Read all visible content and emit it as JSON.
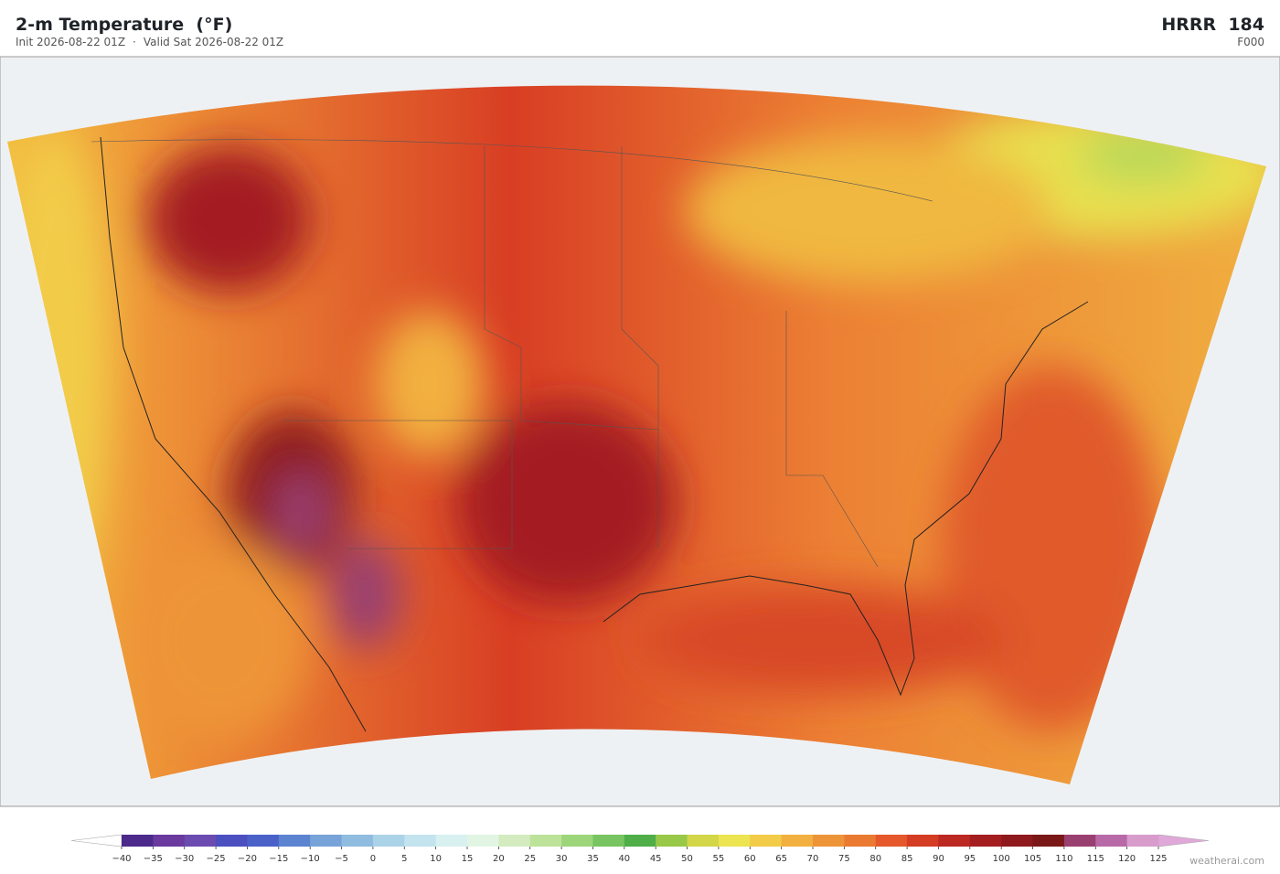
{
  "header": {
    "title": "2-m Temperature  (°F)",
    "init": "Init 2026-08-22 01Z",
    "separator": "·",
    "valid": "Valid Sat 2026-08-22 01Z",
    "model": "HRRR  184",
    "forecast": "F000"
  },
  "colorbar": {
    "ticks": [
      {
        "value": -40,
        "label": "−40"
      },
      {
        "value": -35,
        "label": "−35"
      },
      {
        "value": -30,
        "label": "−30"
      },
      {
        "value": -25,
        "label": "−25"
      },
      {
        "value": -20,
        "label": "−20"
      },
      {
        "value": -15,
        "label": "−15"
      },
      {
        "value": -10,
        "label": "−10"
      },
      {
        "value": -5,
        "label": "−5"
      },
      0,
      5,
      10,
      15,
      20,
      25,
      30,
      35,
      40,
      45,
      50,
      55,
      60,
      65,
      70,
      75,
      80,
      85,
      90,
      95,
      100,
      105,
      110,
      115,
      120,
      125
    ],
    "colors": [
      "#4b2a8c",
      "#6a3a9e",
      "#6b4bb0",
      "#4b4fc0",
      "#4a62c8",
      "#5b83d0",
      "#77a3d8",
      "#90bce0",
      "#abd3e8",
      "#c3e3ee",
      "#d8f0f0",
      "#e2f5e4",
      "#d4ebbf",
      "#bde39a",
      "#9dd57a",
      "#78c460",
      "#4fae48",
      "#98c848",
      "#d2d648",
      "#ece450",
      "#f2cc48",
      "#f2b040",
      "#ee9438",
      "#ea7a32",
      "#e4582c",
      "#d43c24",
      "#bc2822",
      "#a41e20",
      "#8e1a1e",
      "#7a1818",
      "#9a4070",
      "#b86aa8",
      "#d89ccc"
    ],
    "under_color": "#ffffff",
    "over_color": "#e0a8d8"
  },
  "footer": {
    "credit": "weatherai.com"
  }
}
